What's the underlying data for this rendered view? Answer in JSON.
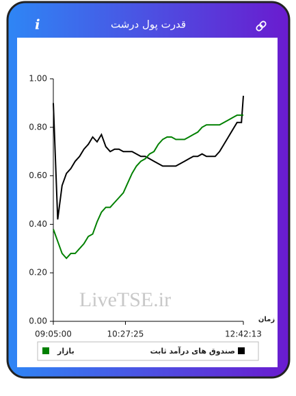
{
  "header": {
    "title": "قدرت پول درشت",
    "info_icon": "i"
  },
  "chart_data": {
    "type": "line",
    "title": null,
    "watermark": "LiveTSE.ir",
    "xlabel": "زمان",
    "x": [
      "09:05:00",
      "09:10:00",
      "09:15:00",
      "09:20:00",
      "09:25:00",
      "09:30:00",
      "09:35:00",
      "09:40:00",
      "09:45:00",
      "09:50:00",
      "09:55:00",
      "10:00:00",
      "10:05:00",
      "10:10:00",
      "10:15:00",
      "10:20:00",
      "10:25:00",
      "10:30:00",
      "10:35:00",
      "10:40:00",
      "10:45:00",
      "10:50:00",
      "10:55:00",
      "11:00:00",
      "11:05:00",
      "11:10:00",
      "11:15:00",
      "11:20:00",
      "11:25:00",
      "11:30:00",
      "11:35:00",
      "11:40:00",
      "11:45:00",
      "11:50:00",
      "11:55:00",
      "12:00:00",
      "12:05:00",
      "12:10:00",
      "12:15:00",
      "12:20:00",
      "12:25:00",
      "12:30:00",
      "12:35:00",
      "12:40:00",
      "12:42:13"
    ],
    "series": [
      {
        "name": "صندوق های درآمد ثابت",
        "color": "#000000",
        "values": [
          0.9,
          0.42,
          0.56,
          0.61,
          0.63,
          0.66,
          0.68,
          0.71,
          0.73,
          0.76,
          0.74,
          0.77,
          0.72,
          0.7,
          0.71,
          0.71,
          0.7,
          0.7,
          0.7,
          0.69,
          0.68,
          0.68,
          0.67,
          0.66,
          0.65,
          0.64,
          0.64,
          0.64,
          0.64,
          0.65,
          0.66,
          0.67,
          0.68,
          0.68,
          0.69,
          0.68,
          0.68,
          0.68,
          0.7,
          0.73,
          0.76,
          0.79,
          0.82,
          0.82,
          0.93
        ]
      },
      {
        "name": "بازار",
        "color": "#008000",
        "values": [
          0.38,
          0.33,
          0.28,
          0.26,
          0.28,
          0.28,
          0.3,
          0.32,
          0.35,
          0.36,
          0.41,
          0.45,
          0.47,
          0.47,
          0.49,
          0.51,
          0.53,
          0.57,
          0.61,
          0.64,
          0.66,
          0.67,
          0.69,
          0.7,
          0.73,
          0.75,
          0.76,
          0.76,
          0.75,
          0.75,
          0.75,
          0.76,
          0.77,
          0.78,
          0.8,
          0.81,
          0.81,
          0.81,
          0.81,
          0.82,
          0.83,
          0.84,
          0.85,
          0.85,
          0.85
        ]
      }
    ],
    "xlim": [
      "09:05:00",
      "12:42:13"
    ],
    "xticks": [
      "09:05:00",
      "10:27:25",
      "12:42:13"
    ],
    "ylim": [
      0,
      1
    ],
    "yticks": [
      {
        "value": 0,
        "label": "0.00"
      },
      {
        "value": 0.2,
        "label": "0.20"
      },
      {
        "value": 0.4,
        "label": "0.40"
      },
      {
        "value": 0.6,
        "label": "0.60"
      },
      {
        "value": 0.8,
        "label": "0.80"
      },
      {
        "value": 1,
        "label": "1.00"
      }
    ],
    "grid": false
  }
}
